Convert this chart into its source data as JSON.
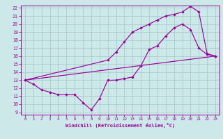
{
  "background_color": "#cce8e8",
  "grid_color": "#aacccc",
  "line_color": "#990099",
  "marker": "D",
  "marker_size": 2.2,
  "xlim": [
    -0.5,
    23.5
  ],
  "ylim": [
    8.7,
    22.3
  ],
  "xticks": [
    0,
    1,
    2,
    3,
    4,
    5,
    6,
    7,
    8,
    9,
    10,
    11,
    12,
    13,
    14,
    15,
    16,
    17,
    18,
    19,
    20,
    21,
    22,
    23
  ],
  "yticks": [
    9,
    10,
    11,
    12,
    13,
    14,
    15,
    16,
    17,
    18,
    19,
    20,
    21,
    22
  ],
  "xlabel": "Windchill (Refroidissement éolien,°C)",
  "line1_x": [
    0,
    1,
    2,
    3,
    4,
    5,
    6,
    7,
    8,
    9,
    10,
    11,
    12,
    13,
    14,
    15,
    16,
    17,
    18,
    19,
    20,
    21,
    22,
    23
  ],
  "line1_y": [
    13.0,
    12.5,
    11.8,
    11.5,
    11.2,
    11.2,
    11.2,
    10.2,
    9.3,
    10.7,
    13.0,
    13.0,
    13.2,
    13.4,
    14.8,
    16.8,
    17.3,
    18.5,
    19.5,
    20.0,
    19.3,
    17.0,
    16.2,
    16.0
  ],
  "line2_x": [
    0,
    10,
    11,
    12,
    13,
    14,
    15,
    16,
    17,
    18,
    19,
    20,
    21,
    22,
    23
  ],
  "line2_y": [
    13.0,
    15.5,
    16.5,
    17.8,
    19.0,
    19.5,
    20.0,
    20.5,
    21.0,
    21.2,
    21.5,
    22.2,
    21.5,
    16.3,
    16.0
  ],
  "line3_x": [
    0,
    23
  ],
  "line3_y": [
    13.0,
    16.0
  ]
}
